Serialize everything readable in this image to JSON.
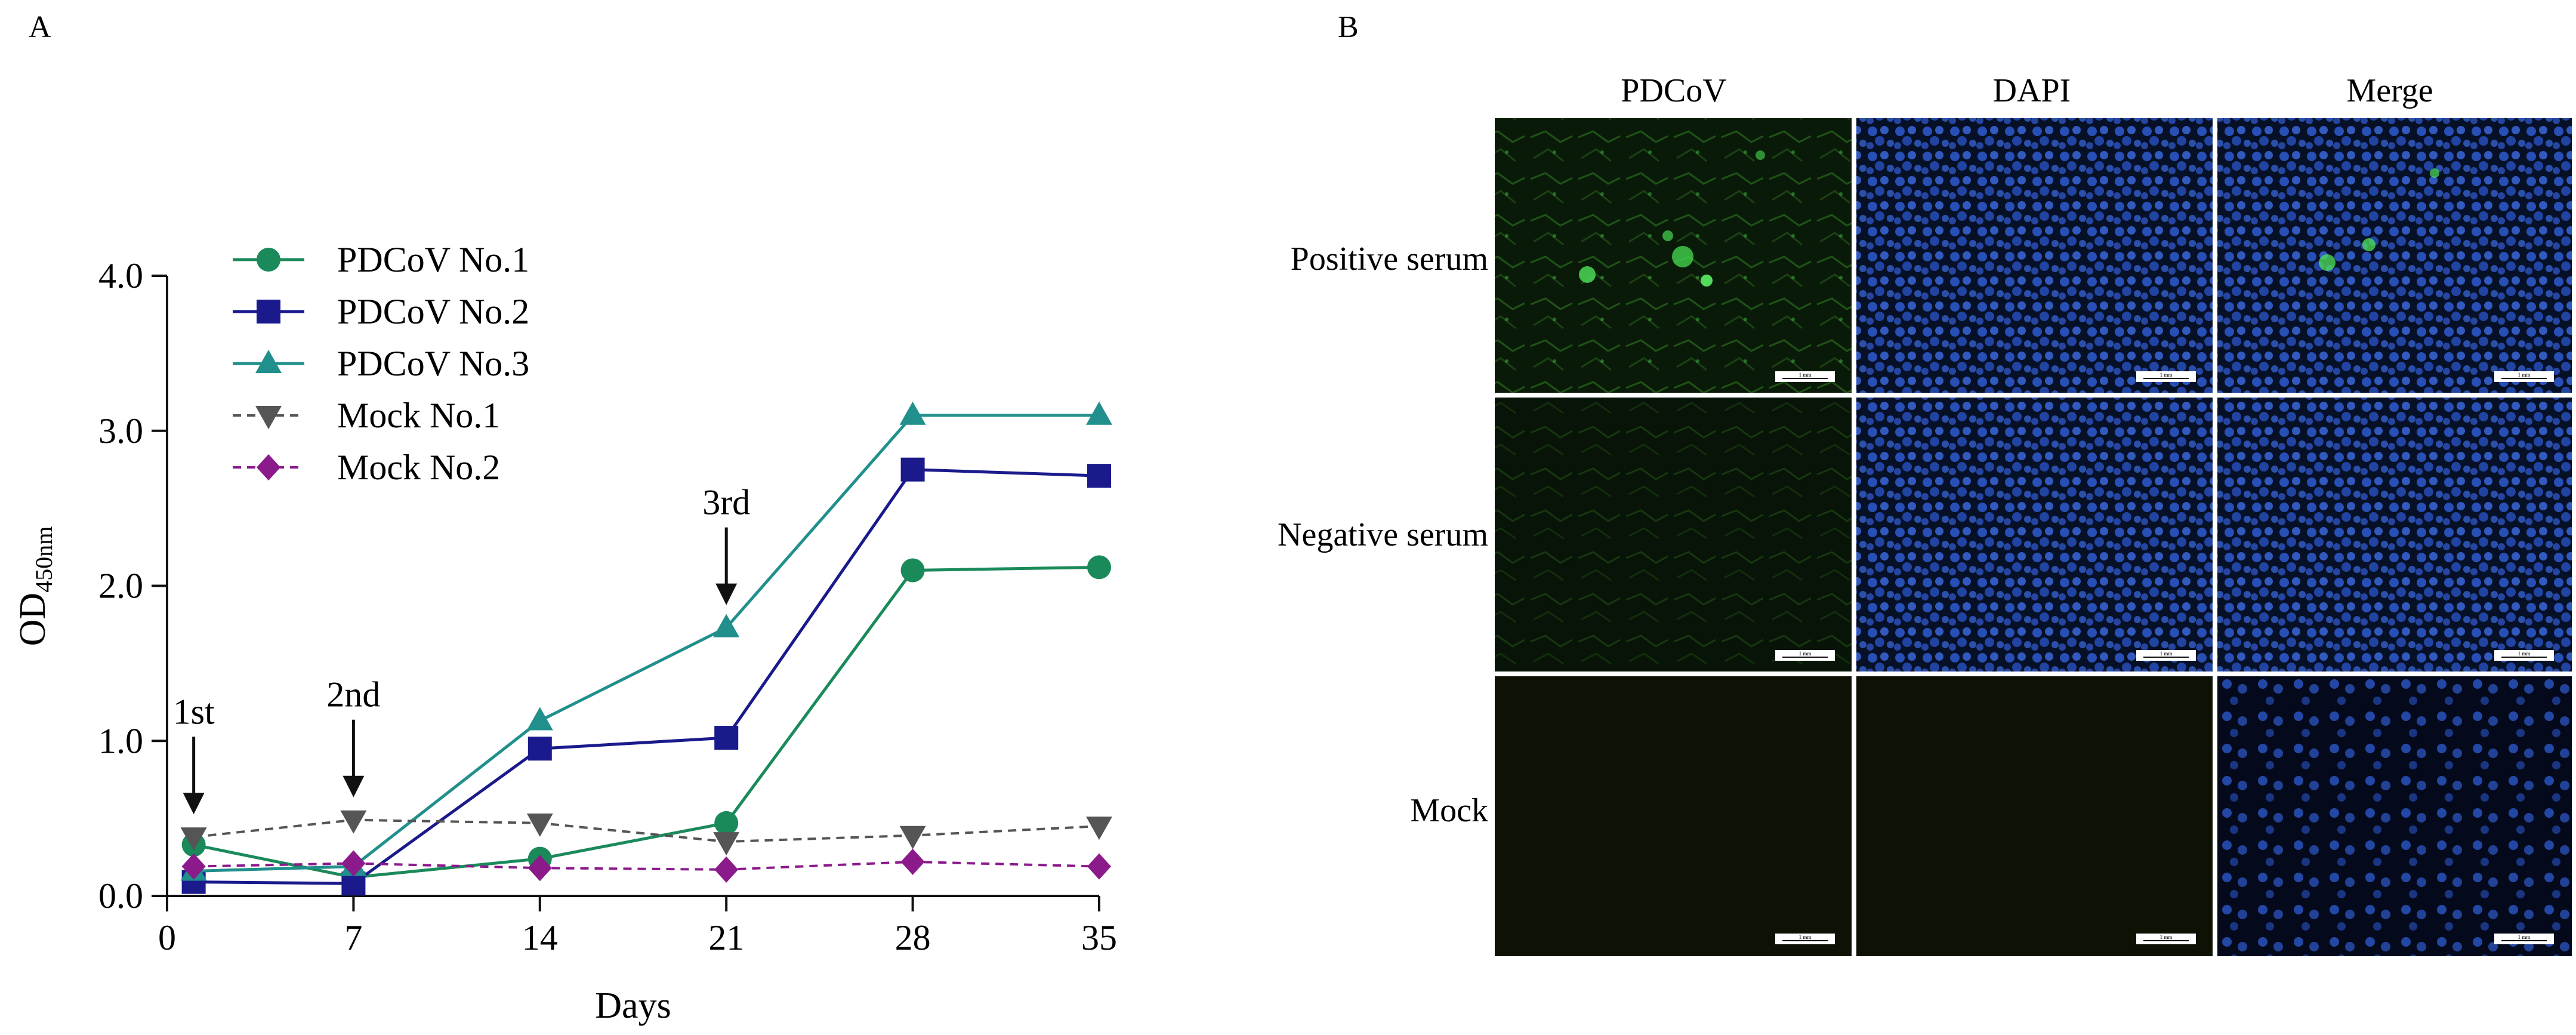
{
  "figure": {
    "panel_a_label": "A",
    "panel_b_label": "B"
  },
  "chart_data": {
    "type": "line",
    "title": "",
    "xlabel": "Days",
    "ylabel_main": "OD",
    "ylabel_sub": "450nm",
    "xlim": [
      0,
      35
    ],
    "ylim": [
      0,
      4.0
    ],
    "xticks": [
      0,
      7,
      14,
      21,
      28,
      35
    ],
    "xtick_labels": [
      "0",
      "7",
      "14",
      "21",
      "28",
      "35"
    ],
    "yticks": [
      0,
      1,
      2,
      3,
      4
    ],
    "ytick_labels": [
      "0.0",
      "1.0",
      "2.0",
      "3.0",
      "4.0"
    ],
    "grid": false,
    "legend_placement": "top-left",
    "x": [
      1,
      7,
      14,
      21,
      28,
      35
    ],
    "series": [
      {
        "name": "PDCoV No.1",
        "values": [
          0.33,
          0.12,
          0.24,
          0.47,
          2.1,
          2.12
        ],
        "color": "#1b8a5a",
        "marker": "circle",
        "dashed": false
      },
      {
        "name": "PDCoV No.2",
        "values": [
          0.09,
          0.08,
          0.95,
          1.02,
          2.75,
          2.71
        ],
        "color": "#1a1a8c",
        "marker": "square",
        "dashed": false
      },
      {
        "name": "PDCoV No.3",
        "values": [
          0.16,
          0.19,
          1.13,
          1.73,
          3.1,
          3.1
        ],
        "color": "#21908c",
        "marker": "triangle-up",
        "dashed": false
      },
      {
        "name": "Mock No.1",
        "values": [
          0.38,
          0.49,
          0.47,
          0.35,
          0.39,
          0.45
        ],
        "color": "#555555",
        "marker": "triangle-down",
        "dashed": true
      },
      {
        "name": "Mock No.2",
        "values": [
          0.19,
          0.21,
          0.18,
          0.17,
          0.22,
          0.19
        ],
        "color": "#8b1a8b",
        "marker": "diamond",
        "dashed": true
      }
    ],
    "annotations": [
      {
        "text": "1st",
        "x": 1,
        "y": 0.38
      },
      {
        "text": "2nd",
        "x": 7,
        "y": 0.49
      },
      {
        "text": "3rd",
        "x": 21,
        "y": 1.73
      }
    ]
  },
  "micrographs": {
    "columns": [
      "PDCoV",
      "DAPI",
      "Merge"
    ],
    "rows": [
      "Positive serum",
      "Negative serum",
      "Mock"
    ],
    "scale_bar_label": "1 mm"
  },
  "colors": {
    "stain_green": "#3fc24a",
    "stain_blue": "#2a56c6",
    "dark_bg": "#070b12"
  }
}
